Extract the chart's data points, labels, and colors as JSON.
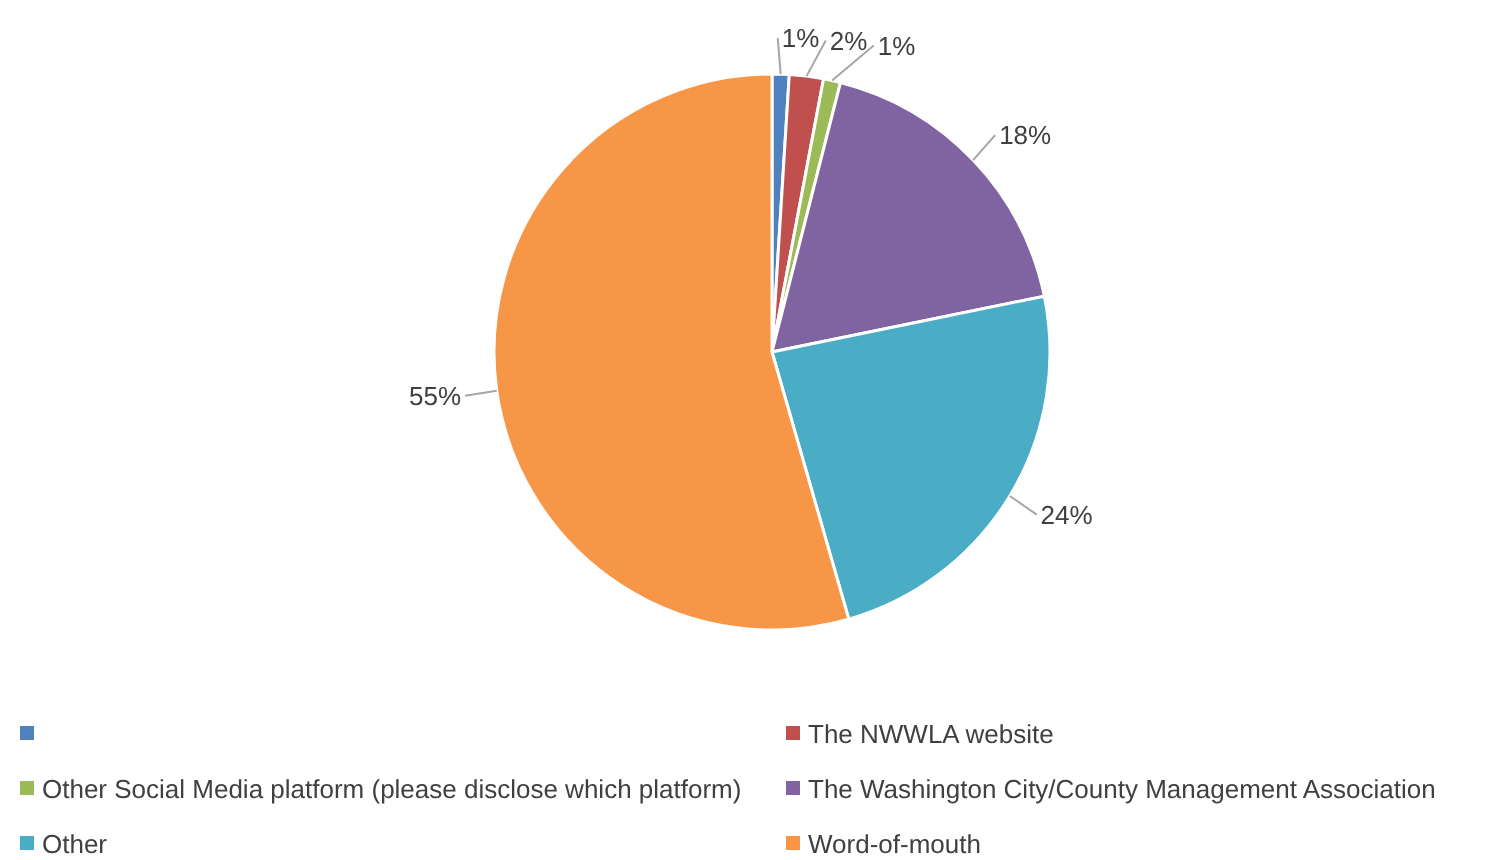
{
  "chart_data": {
    "type": "pie",
    "categories": [
      null,
      "The NWWLA website",
      "Other Social Media platform (please disclose which platform)",
      "The Washington City/County Management Association",
      "Other",
      "Word-of-mouth"
    ],
    "values": [
      1,
      2,
      1,
      18,
      24,
      55
    ],
    "colors": [
      "#4f81bd",
      "#c0504d",
      "#9bbb59",
      "#8064a2",
      "#4bacc6",
      "#f79646"
    ],
    "value_labels": [
      "1%",
      "2%",
      "1%",
      "18%",
      "24%",
      "55%"
    ],
    "legend": "bottom"
  }
}
